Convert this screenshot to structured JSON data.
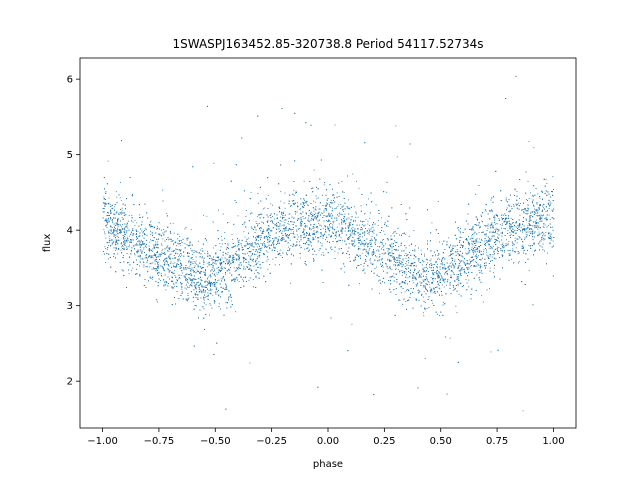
{
  "chart_data": {
    "type": "scatter",
    "title": "1SWASPJ163452.85-320738.8 Period 54117.52734s",
    "xlabel": "phase",
    "ylabel": "flux",
    "xlim": [
      -1.1,
      1.1
    ],
    "ylim": [
      1.38,
      6.28
    ],
    "x_ticks": [
      -1.0,
      -0.75,
      -0.5,
      -0.25,
      0.0,
      0.25,
      0.5,
      0.75,
      1.0
    ],
    "x_tick_labels": [
      "−1.00",
      "−0.75",
      "−0.50",
      "−0.25",
      "0.00",
      "0.25",
      "0.50",
      "0.75",
      "1.00"
    ],
    "y_ticks": [
      2,
      3,
      4,
      5,
      6
    ],
    "y_tick_labels": [
      "2",
      "3",
      "4",
      "5",
      "6"
    ],
    "grid": false,
    "legend": "none",
    "marker_color": "#1f77b4",
    "series": [
      {
        "trend_points": [
          {
            "x": -1.0,
            "y": 4.1
          },
          {
            "x": -0.9,
            "y": 3.95
          },
          {
            "x": -0.8,
            "y": 3.8
          },
          {
            "x": -0.7,
            "y": 3.6
          },
          {
            "x": -0.6,
            "y": 3.42
          },
          {
            "x": -0.55,
            "y": 3.35
          },
          {
            "x": -0.5,
            "y": 3.4
          },
          {
            "x": -0.4,
            "y": 3.6
          },
          {
            "x": -0.3,
            "y": 3.85
          },
          {
            "x": -0.2,
            "y": 4.02
          },
          {
            "x": -0.1,
            "y": 4.1
          },
          {
            "x": 0.0,
            "y": 4.1
          },
          {
            "x": 0.1,
            "y": 3.95
          },
          {
            "x": 0.2,
            "y": 3.8
          },
          {
            "x": 0.3,
            "y": 3.6
          },
          {
            "x": 0.4,
            "y": 3.42
          },
          {
            "x": 0.45,
            "y": 3.35
          },
          {
            "x": 0.5,
            "y": 3.4
          },
          {
            "x": 0.6,
            "y": 3.6
          },
          {
            "x": 0.7,
            "y": 3.85
          },
          {
            "x": 0.8,
            "y": 4.02
          },
          {
            "x": 0.9,
            "y": 4.1
          },
          {
            "x": 1.0,
            "y": 4.1
          }
        ],
        "scatter_sigma": 0.22,
        "outlier_range": [
          1.6,
          6.05
        ]
      }
    ]
  }
}
